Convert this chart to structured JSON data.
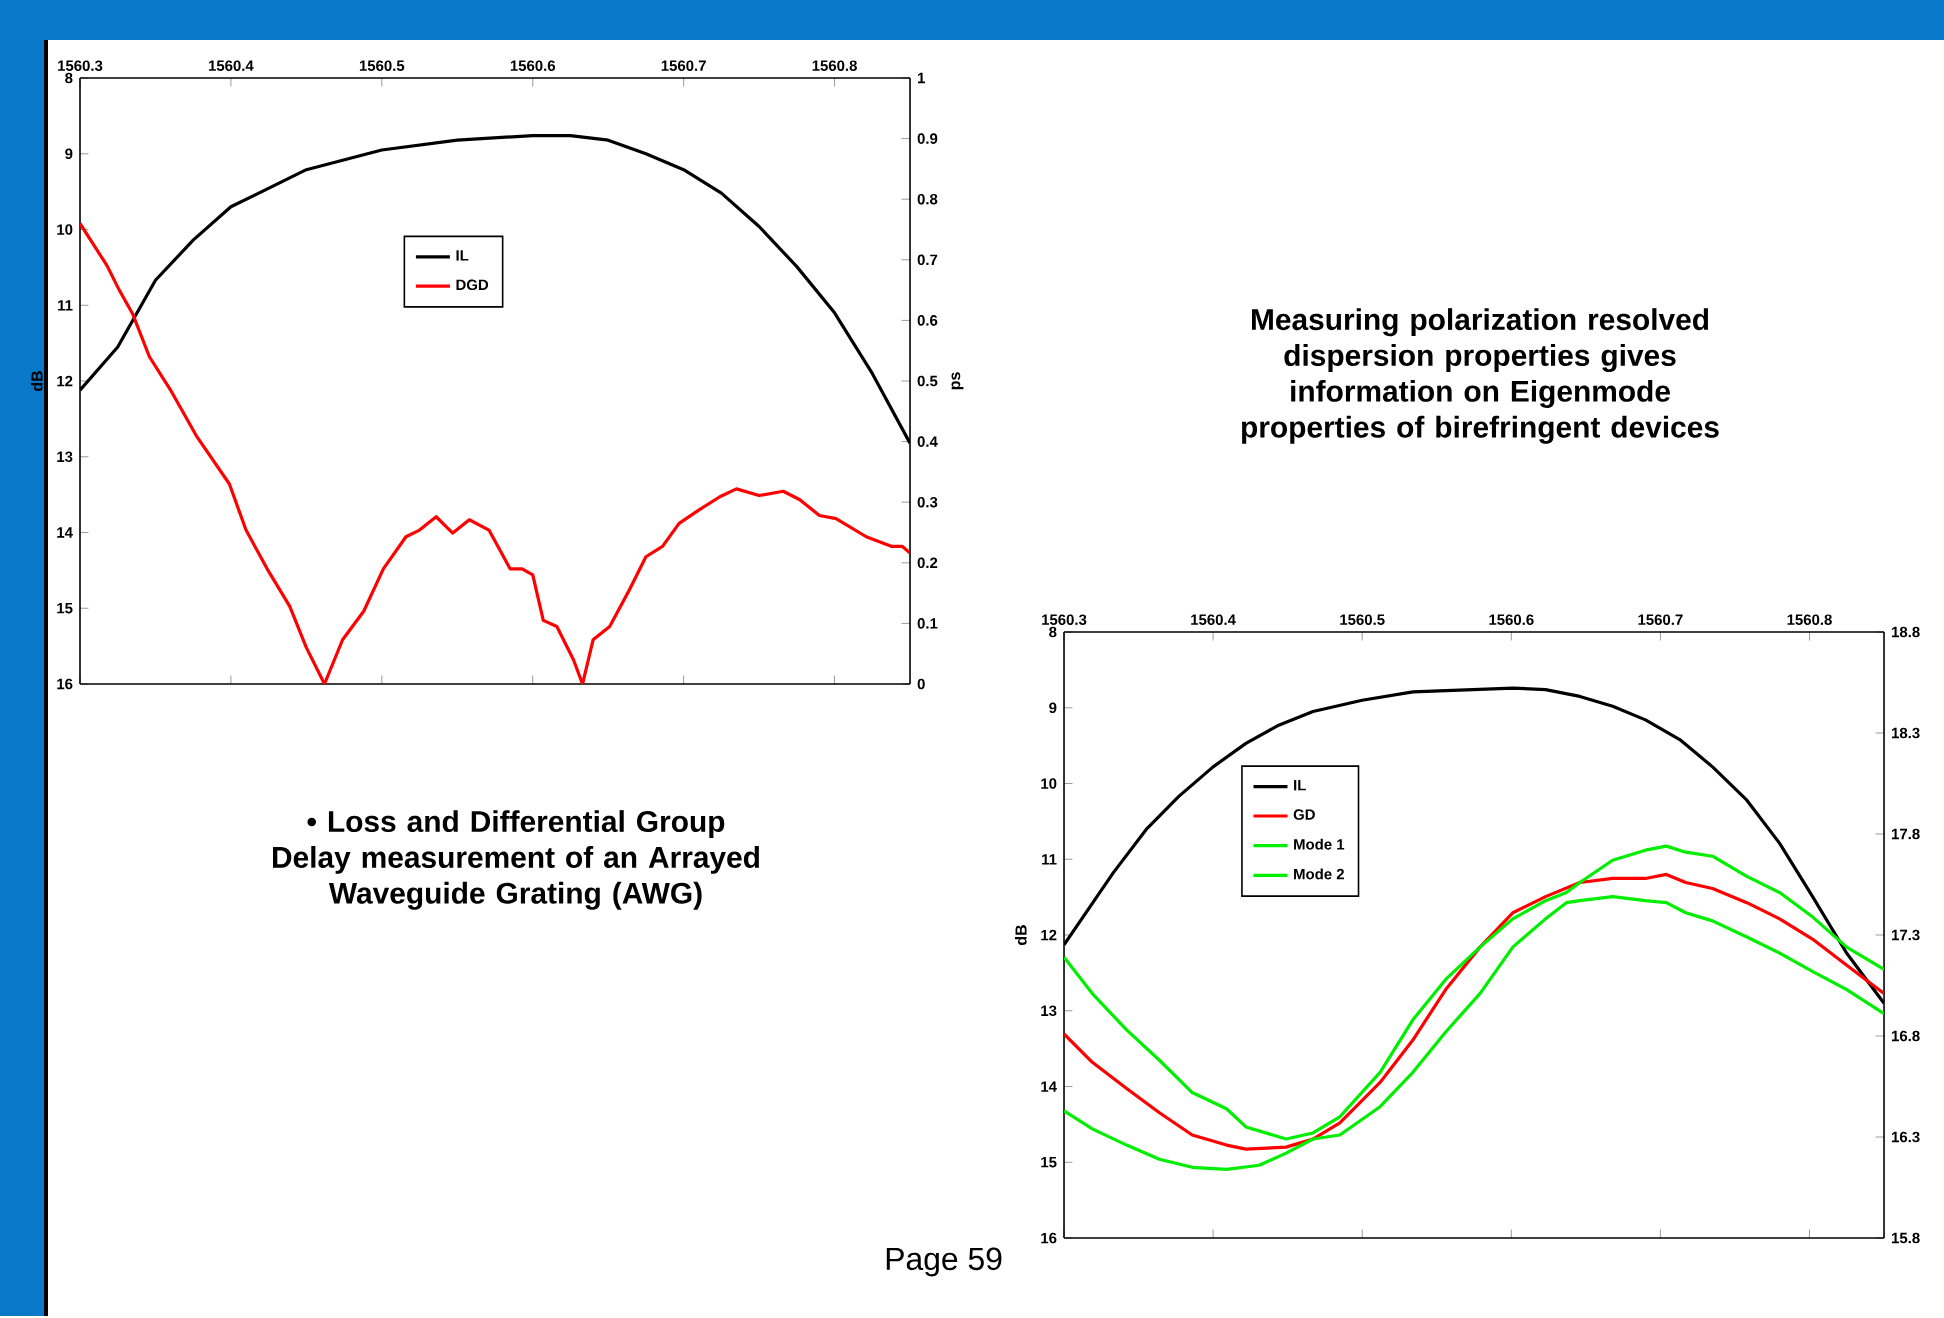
{
  "chart_data": [
    {
      "type": "line",
      "xlim": [
        1560.3,
        1560.85
      ],
      "xticks": [
        1560.3,
        1560.4,
        1560.5,
        1560.6,
        1560.7,
        1560.8
      ],
      "ylim": [
        16,
        8
      ],
      "yticks": [
        8,
        9,
        10,
        11,
        12,
        13,
        14,
        15,
        16
      ],
      "y2lim": [
        0,
        1
      ],
      "y2ticks": [
        0,
        0.1,
        0.2,
        0.3,
        0.4,
        0.5,
        0.6,
        0.7,
        0.8,
        0.9,
        1
      ],
      "ylabel": "dB",
      "y2label": "ps",
      "legend": "top",
      "series": [
        {
          "name": "IL",
          "color": "#000000",
          "x": [
            1560.3,
            1560.325,
            1560.35,
            1560.375,
            1560.4,
            1560.45,
            1560.5,
            1560.55,
            1560.6,
            1560.625,
            1560.65,
            1560.675,
            1560.7,
            1560.725,
            1560.75,
            1560.775,
            1560.8,
            1560.825,
            1560.85
          ],
          "values": [
            12.12,
            11.55,
            10.67,
            10.14,
            9.7,
            9.21,
            8.95,
            8.82,
            8.76,
            8.76,
            8.82,
            9.0,
            9.21,
            9.52,
            9.96,
            10.49,
            11.1,
            11.9,
            12.82
          ]
        },
        {
          "name": "DGD",
          "color": "#ff0000",
          "axis": "y2",
          "x": [
            1560.3,
            1560.318,
            1560.326,
            1560.335,
            1560.346,
            1560.36,
            1560.377,
            1560.399,
            1560.41,
            1560.424,
            1560.439,
            1560.45,
            1560.462,
            1560.474,
            1560.488,
            1560.501,
            1560.516,
            1560.525,
            1560.536,
            1560.547,
            1560.558,
            1560.571,
            1560.585,
            1560.593,
            1560.6,
            1560.607,
            1560.616,
            1560.627,
            1560.633,
            1560.64,
            1560.651,
            1560.664,
            1560.675,
            1560.686,
            1560.697,
            1560.71,
            1560.724,
            1560.735,
            1560.75,
            1560.766,
            1560.777,
            1560.79,
            1560.801,
            1560.821,
            1560.838,
            1560.845,
            1560.85
          ],
          "values": [
            0.76,
            0.69,
            0.65,
            0.61,
            0.54,
            0.485,
            0.41,
            0.33,
            0.254,
            0.19,
            0.128,
            0.06,
            0,
            0.073,
            0.12,
            0.19,
            0.243,
            0.254,
            0.276,
            0.249,
            0.271,
            0.254,
            0.19,
            0.19,
            0.18,
            0.105,
            0.095,
            0.04,
            0,
            0.073,
            0.095,
            0.155,
            0.21,
            0.227,
            0.265,
            0.287,
            0.309,
            0.322,
            0.311,
            0.318,
            0.304,
            0.278,
            0.273,
            0.243,
            0.227,
            0.227,
            0.216
          ]
        }
      ],
      "annotations": [
        "• Loss and Differential Group Delay measurement of an Arrayed Waveguide Grating (AWG)"
      ]
    },
    {
      "type": "line",
      "xlim": [
        1560.3,
        1560.85
      ],
      "xticks": [
        1560.3,
        1560.4,
        1560.5,
        1560.6,
        1560.7,
        1560.8
      ],
      "ylim": [
        16,
        8
      ],
      "yticks": [
        8,
        9,
        10,
        11,
        12,
        13,
        14,
        15,
        16
      ],
      "y2lim": [
        15.8,
        18.8
      ],
      "y2ticks": [
        15.8,
        16.3,
        16.8,
        17.3,
        17.8,
        18.3,
        18.8
      ],
      "ylabel": "dB",
      "legend": "top left",
      "series": [
        {
          "name": "IL",
          "color": "#000000",
          "x": [
            1560.3,
            1560.333,
            1560.355,
            1560.377,
            1560.4,
            1560.422,
            1560.444,
            1560.467,
            1560.5,
            1560.534,
            1560.601,
            1560.623,
            1560.646,
            1560.668,
            1560.69,
            1560.713,
            1560.735,
            1560.758,
            1560.78,
            1560.802,
            1560.825,
            1560.85
          ],
          "values": [
            12.13,
            11.18,
            10.61,
            10.17,
            9.78,
            9.47,
            9.23,
            9.05,
            8.9,
            8.79,
            8.74,
            8.76,
            8.85,
            8.98,
            9.16,
            9.42,
            9.78,
            10.22,
            10.79,
            11.49,
            12.24,
            12.9
          ]
        },
        {
          "name": "GD",
          "color": "#ff0000",
          "axis": "y2",
          "x": [
            1560.3,
            1560.319,
            1560.342,
            1560.364,
            1560.386,
            1560.409,
            1560.422,
            1560.449,
            1560.467,
            1560.485,
            1560.512,
            1560.534,
            1560.556,
            1560.579,
            1560.601,
            1560.623,
            1560.646,
            1560.668,
            1560.69,
            1560.704,
            1560.717,
            1560.735,
            1560.758,
            1560.78,
            1560.802,
            1560.825,
            1560.85
          ],
          "values": [
            16.81,
            16.67,
            16.54,
            16.42,
            16.31,
            16.26,
            16.24,
            16.25,
            16.29,
            16.37,
            16.57,
            16.78,
            17.03,
            17.24,
            17.41,
            17.49,
            17.56,
            17.58,
            17.58,
            17.6,
            17.56,
            17.53,
            17.46,
            17.38,
            17.28,
            17.15,
            17.01
          ]
        },
        {
          "name": "Mode 1",
          "color": "#00ee00",
          "axis": "y2",
          "x": [
            1560.3,
            1560.319,
            1560.342,
            1560.364,
            1560.386,
            1560.409,
            1560.422,
            1560.449,
            1560.467,
            1560.485,
            1560.512,
            1560.534,
            1560.556,
            1560.579,
            1560.601,
            1560.623,
            1560.637,
            1560.646,
            1560.668,
            1560.69,
            1560.704,
            1560.717,
            1560.735,
            1560.758,
            1560.78,
            1560.802,
            1560.825,
            1560.85
          ],
          "values": [
            17.19,
            17.01,
            16.83,
            16.68,
            16.52,
            16.44,
            16.35,
            16.29,
            16.32,
            16.4,
            16.62,
            16.88,
            17.08,
            17.24,
            17.38,
            17.47,
            17.51,
            17.56,
            17.67,
            17.72,
            17.74,
            17.71,
            17.69,
            17.59,
            17.51,
            17.39,
            17.24,
            17.13
          ]
        },
        {
          "name": "Mode 2",
          "color": "#00ee00",
          "axis": "y2",
          "x": [
            1560.3,
            1560.319,
            1560.342,
            1560.364,
            1560.386,
            1560.409,
            1560.431,
            1560.449,
            1560.467,
            1560.485,
            1560.512,
            1560.534,
            1560.556,
            1560.579,
            1560.601,
            1560.623,
            1560.637,
            1560.646,
            1560.668,
            1560.69,
            1560.704,
            1560.717,
            1560.735,
            1560.758,
            1560.78,
            1560.802,
            1560.825,
            1560.85
          ],
          "values": [
            16.43,
            16.34,
            16.26,
            16.19,
            16.15,
            16.14,
            16.16,
            16.22,
            16.29,
            16.31,
            16.45,
            16.62,
            16.82,
            17.01,
            17.24,
            17.38,
            17.46,
            17.47,
            17.49,
            17.47,
            17.46,
            17.41,
            17.37,
            17.29,
            17.21,
            17.12,
            17.03,
            16.91
          ]
        }
      ],
      "annotations": [
        "Measuring polarization resolved dispersion properties gives information on Eigenmode properties of birefringent devices",
        "Page 59"
      ]
    }
  ]
}
